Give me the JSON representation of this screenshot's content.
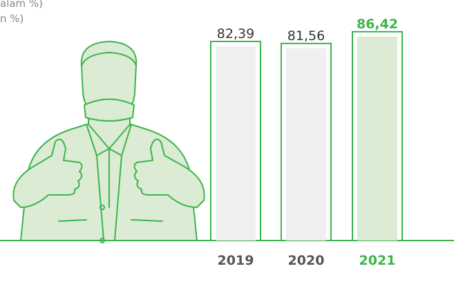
{
  "chart_data": {
    "type": "bar",
    "subtitles": [
      "alam %)",
      "n %)"
    ],
    "categories": [
      "2019",
      "2020",
      "2021"
    ],
    "values": [
      82.39,
      81.56,
      86.42
    ],
    "value_labels": [
      "82,39",
      "81,56",
      "86,42"
    ],
    "colors": [
      "#efefef",
      "#efefef",
      "#dcebd3"
    ],
    "outline_color": "#3cb44b",
    "ylim": [
      0,
      100
    ]
  }
}
